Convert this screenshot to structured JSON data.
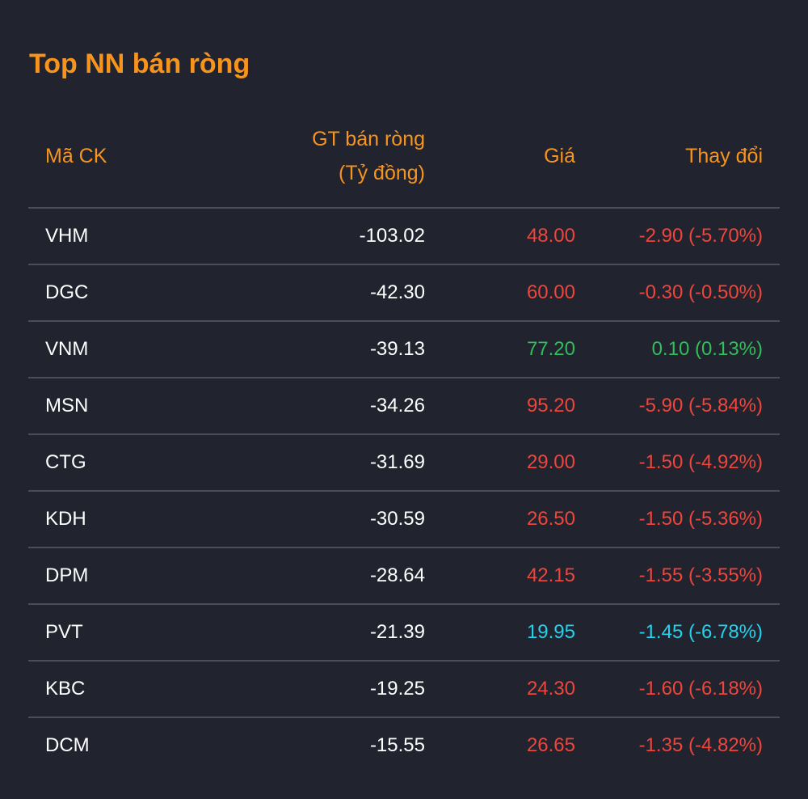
{
  "title": "Top NN bán ròng",
  "columns": {
    "code": "Mã CK",
    "value_line1": "GT bán ròng",
    "value_line2": "(Tỷ đồng)",
    "price": "Giá",
    "change": "Thay đổi"
  },
  "colors": {
    "accent": "#f7941d",
    "background": "#21232e",
    "down": "#f0453a",
    "up": "#2fbf5b",
    "floor": "#22d3ee",
    "divider": "#4a4d5c"
  },
  "rows": [
    {
      "code": "VHM",
      "value": "-103.02",
      "price": "48.00",
      "change": "-2.90 (-5.70%)",
      "status": "down"
    },
    {
      "code": "DGC",
      "value": "-42.30",
      "price": "60.00",
      "change": "-0.30 (-0.50%)",
      "status": "down"
    },
    {
      "code": "VNM",
      "value": "-39.13",
      "price": "77.20",
      "change": "0.10 (0.13%)",
      "status": "up"
    },
    {
      "code": "MSN",
      "value": "-34.26",
      "price": "95.20",
      "change": "-5.90 (-5.84%)",
      "status": "down"
    },
    {
      "code": "CTG",
      "value": "-31.69",
      "price": "29.00",
      "change": "-1.50 (-4.92%)",
      "status": "down"
    },
    {
      "code": "KDH",
      "value": "-30.59",
      "price": "26.50",
      "change": "-1.50 (-5.36%)",
      "status": "down"
    },
    {
      "code": "DPM",
      "value": "-28.64",
      "price": "42.15",
      "change": "-1.55 (-3.55%)",
      "status": "down"
    },
    {
      "code": "PVT",
      "value": "-21.39",
      "price": "19.95",
      "change": "-1.45 (-6.78%)",
      "status": "floor"
    },
    {
      "code": "KBC",
      "value": "-19.25",
      "price": "24.30",
      "change": "-1.60 (-6.18%)",
      "status": "down"
    },
    {
      "code": "DCM",
      "value": "-15.55",
      "price": "26.65",
      "change": "-1.35 (-4.82%)",
      "status": "down"
    }
  ]
}
